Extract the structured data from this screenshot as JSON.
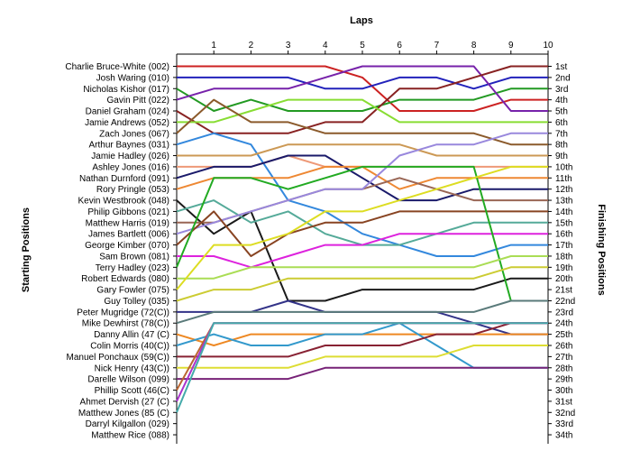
{
  "chart_data": {
    "type": "line",
    "title": "",
    "xlabel": "Laps",
    "ylabel_left": "Starting Positions",
    "ylabel_right": "Finishing Positions",
    "x": [
      0,
      1,
      2,
      3,
      4,
      5,
      6,
      7,
      8,
      9,
      10
    ],
    "x_tick_labels": [
      "1",
      "2",
      "3",
      "4",
      "5",
      "6",
      "7",
      "8",
      "9",
      "10"
    ],
    "position_range": [
      1,
      34
    ],
    "y_inverted": true,
    "grid": false,
    "legend": "none",
    "drivers": [
      "Charlie Bruce-White (002)",
      "Josh Waring (010)",
      "Nicholas Kishor (017)",
      "Gavin Pitt (022)",
      "Daniel Graham (024)",
      "Jamie Andrews (052)",
      "Zach Jones (067)",
      "Arthur Baynes (031)",
      "Jamie Hadley (026)",
      "Ashley Jones (016)",
      "Nathan Durnford (091)",
      "Rory Pringle (053)",
      "Kevin Westbrook (048)",
      "Philip Gibbons (021)",
      "Matthew Harris (019)",
      "James Bartlett (006)",
      "George Kimber (070)",
      "Sam Brown (081)",
      "Terry Hadley (023)",
      "Robert Edwards (080)",
      "Gary Fowler (075)",
      "Guy Tolley (035)",
      "Peter Mugridge (72(C))",
      "Mike Dewhirst (78(C))",
      "Danny Allin (47 (C)",
      "Colin Morris (40(C))",
      "Manuel Ponchaux (59(C))",
      "Nick Henry (43(C))",
      "Darelle Wilson (099)",
      "Phillip Scott (46(C)",
      "Ahmet Dervish (27 (C)",
      "Matthew Jones (85 (C)",
      "Darryl Kilgallon (029)",
      "Matthew Rice (088)"
    ],
    "finishing_labels": [
      "1st",
      "2nd",
      "3rd",
      "4th",
      "5th",
      "6th",
      "7th",
      "8th",
      "9th",
      "10th",
      "11th",
      "12th",
      "13th",
      "14th",
      "15th",
      "16th",
      "17th",
      "18th",
      "19th",
      "20th",
      "21st",
      "22nd",
      "23rd",
      "24th",
      "25th",
      "26th",
      "27th",
      "28th",
      "29th",
      "30th",
      "31st",
      "32nd",
      "33rd",
      "34th"
    ],
    "series": [
      {
        "color": "#cc2222",
        "positions": [
          1,
          1,
          1,
          1,
          1,
          2,
          5,
          5,
          5,
          4,
          4
        ]
      },
      {
        "color": "#2222bb",
        "positions": [
          2,
          2,
          2,
          2,
          3,
          3,
          2,
          2,
          3,
          2,
          2
        ]
      },
      {
        "color": "#229922",
        "positions": [
          3,
          5,
          4,
          5,
          5,
          5,
          4,
          4,
          4,
          3,
          3
        ]
      },
      {
        "color": "#7722aa",
        "positions": [
          4,
          3,
          3,
          3,
          2,
          1,
          1,
          1,
          1,
          5,
          5
        ]
      },
      {
        "color": "#882222",
        "positions": [
          5,
          7,
          7,
          7,
          6,
          6,
          3,
          3,
          2,
          1,
          1
        ]
      },
      {
        "color": "#88dd33",
        "positions": [
          6,
          6,
          5,
          4,
          4,
          4,
          6,
          6,
          6,
          6,
          6
        ]
      },
      {
        "color": "#8b5a2b",
        "positions": [
          7,
          4,
          6,
          6,
          7,
          7,
          7,
          7,
          7,
          8,
          8
        ]
      },
      {
        "color": "#3388dd",
        "positions": [
          8,
          7,
          8,
          13,
          14,
          16,
          17,
          18,
          18,
          17,
          17
        ]
      },
      {
        "color": "#cc9955",
        "positions": [
          9,
          9,
          9,
          8,
          8,
          8,
          8,
          9,
          9,
          9,
          9
        ]
      },
      {
        "color": "#ee9977",
        "positions": [
          10,
          10,
          10,
          9,
          10,
          10,
          10,
          10,
          10,
          10,
          10
        ]
      },
      {
        "color": "#1a1a6a",
        "positions": [
          11,
          10,
          10,
          9,
          9,
          11,
          13,
          13,
          12,
          12,
          12
        ]
      },
      {
        "color": "#ee8833",
        "positions": [
          12,
          11,
          11,
          11,
          10,
          10,
          12,
          11,
          11,
          11,
          11
        ]
      },
      {
        "color": "#1a1a1a",
        "positions": [
          13,
          16,
          14,
          22,
          22,
          21,
          21,
          21,
          21,
          20,
          20
        ]
      },
      {
        "color": "#55aa99",
        "positions": [
          14,
          13,
          15,
          14,
          16,
          17,
          17,
          16,
          15,
          15,
          15
        ]
      },
      {
        "color": "#996655",
        "positions": [
          15,
          15,
          14,
          13,
          12,
          12,
          11,
          12,
          13,
          13,
          13
        ]
      },
      {
        "color": "#9988dd",
        "positions": [
          16,
          15,
          14,
          13,
          12,
          12,
          9,
          8,
          8,
          7,
          7
        ]
      },
      {
        "color": "#884422",
        "positions": [
          17,
          14,
          18,
          16,
          15,
          15,
          14,
          14,
          14,
          14,
          14
        ]
      },
      {
        "color": "#dd22dd",
        "positions": [
          18,
          18,
          19,
          18,
          17,
          17,
          16,
          16,
          16,
          16,
          16
        ]
      },
      {
        "color": "#22aa22",
        "positions": [
          19,
          11,
          11,
          12,
          11,
          10,
          10,
          10,
          10,
          22,
          22
        ]
      },
      {
        "color": "#aadd55",
        "positions": [
          20,
          20,
          19,
          19,
          19,
          19,
          19,
          19,
          19,
          18,
          18
        ]
      },
      {
        "color": "#dddd22",
        "positions": [
          21,
          17,
          17,
          16,
          14,
          14,
          13,
          12,
          11,
          10,
          10
        ]
      },
      {
        "color": "#cccc33",
        "positions": [
          22,
          21,
          21,
          20,
          20,
          20,
          20,
          20,
          20,
          19,
          19
        ]
      },
      {
        "color": "#333388",
        "positions": [
          23,
          23,
          23,
          22,
          23,
          23,
          23,
          23,
          24,
          25,
          25
        ]
      },
      {
        "color": "#5a7a7a",
        "positions": [
          24,
          23,
          23,
          23,
          23,
          23,
          23,
          23,
          23,
          22,
          22
        ]
      },
      {
        "color": "#ee8822",
        "positions": [
          25,
          26,
          25,
          25,
          25,
          25,
          25,
          25,
          25,
          25,
          25
        ]
      },
      {
        "color": "#3399cc",
        "positions": [
          26,
          25,
          26,
          26,
          25,
          25,
          24,
          26,
          28,
          28,
          28
        ]
      },
      {
        "color": "#882233",
        "positions": [
          27,
          27,
          27,
          27,
          26,
          26,
          26,
          25,
          25,
          24,
          24
        ]
      },
      {
        "color": "#dddd33",
        "positions": [
          28,
          28,
          28,
          28,
          27,
          27,
          27,
          27,
          26,
          26,
          26
        ]
      },
      {
        "color": "#772277",
        "positions": [
          29,
          29,
          29,
          29,
          28,
          28,
          28,
          28,
          28,
          28,
          28
        ]
      },
      {
        "color": "#bb6633",
        "positions": [
          30,
          24,
          24,
          24,
          24,
          24,
          24,
          24,
          24,
          24,
          24
        ]
      },
      {
        "color": "#aa33cc",
        "positions": [
          31,
          24,
          24,
          24,
          24,
          24,
          24,
          24,
          24,
          24,
          24
        ]
      },
      {
        "color": "#44aaaa",
        "positions": [
          32,
          24,
          24,
          24,
          24,
          24,
          24,
          24,
          24,
          24,
          24
        ]
      }
    ]
  }
}
